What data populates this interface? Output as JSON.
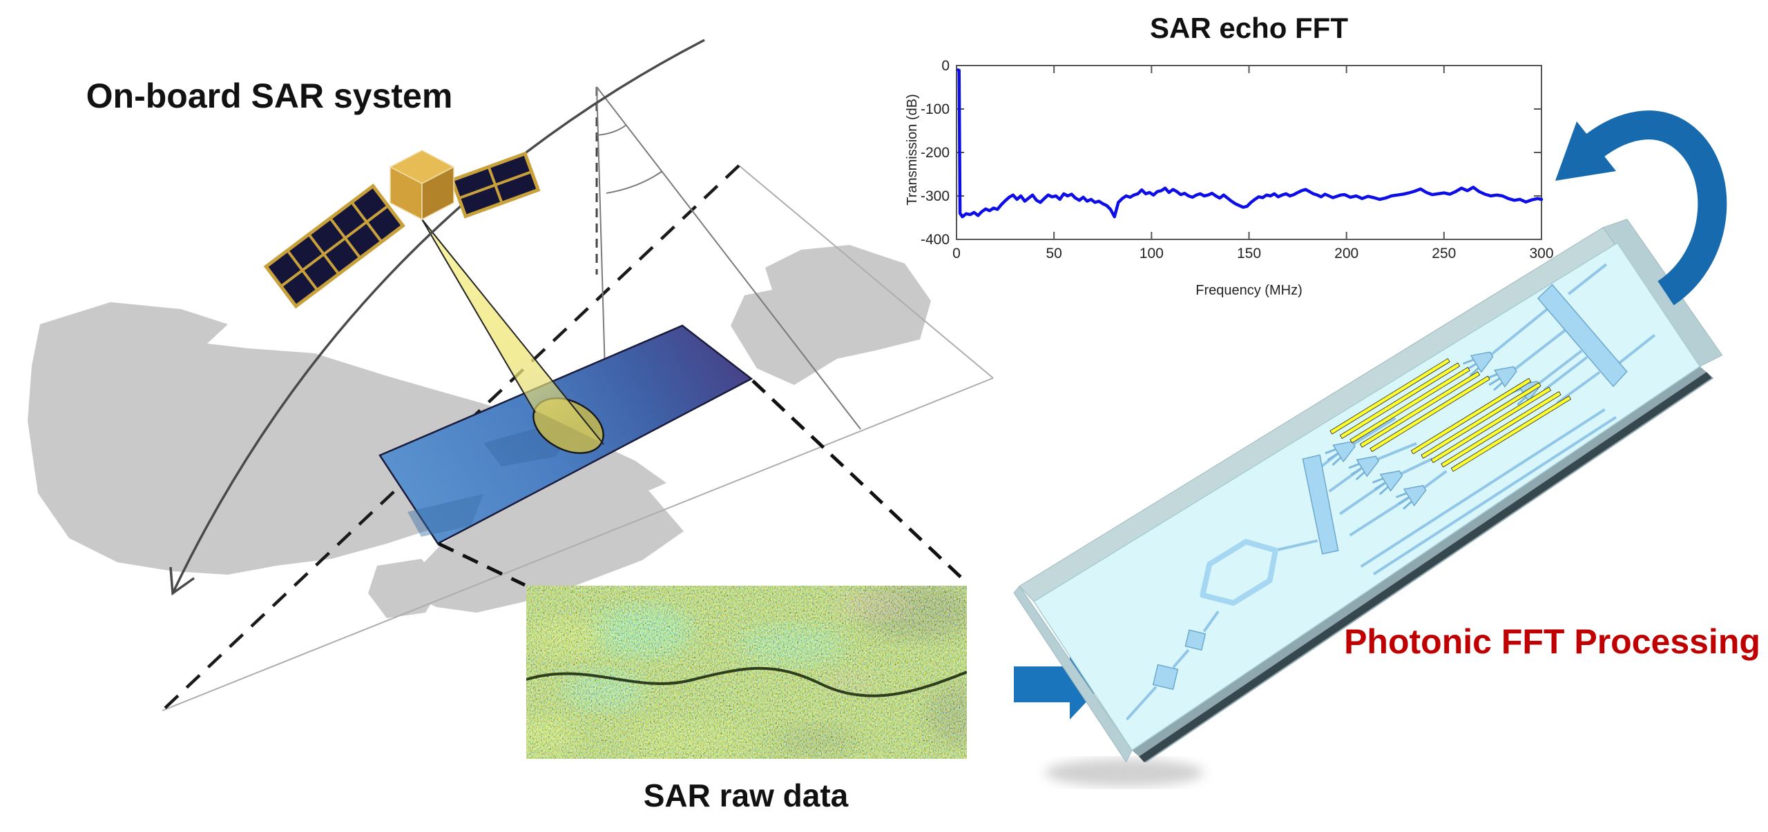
{
  "figure": {
    "labels": {
      "onboard_system": "On-board SAR system",
      "sar_raw_data": "SAR raw data",
      "photonic_fft": "Photonic FFT Processing"
    },
    "colors": {
      "accent_blue": "#1B75BC",
      "curved_arrow_blue": "#166AAD",
      "label_red": "#C00000",
      "chart_line": "#0D0DE8",
      "swath_light": "#5B93CF",
      "swath_dark": "#473F84",
      "chip_face": "#D9F7FB",
      "chip_band": "#C2D8DA",
      "grating_yellow": "#FFFF2E",
      "waveguide_blue": "#A5D6F2",
      "satellite_gold": "#D2A13B",
      "solar_panel_navy": "#15153A",
      "landmass_gray": "#C9C9C9",
      "beam_yellow": "#F5EF8E",
      "footprint_olive": "#B9B257"
    }
  },
  "chart_data": {
    "type": "line",
    "title": "SAR echo FFT",
    "xlabel": "Frequency (MHz)",
    "ylabel": "Transmission (dB)",
    "xlim": [
      0,
      300
    ],
    "ylim": [
      -400,
      0
    ],
    "xticks": [
      0,
      50,
      100,
      150,
      200,
      250,
      300
    ],
    "yticks": [
      0,
      -100,
      -200,
      -300,
      -400
    ],
    "grid": false,
    "legend": "none",
    "series": [
      {
        "name": "SAR echo FFT",
        "color": "#0D0DE8",
        "points": [
          [
            0.8,
            -10
          ],
          [
            1.3,
            -11
          ],
          [
            1.8,
            -340
          ],
          [
            3,
            -348
          ],
          [
            5,
            -341
          ],
          [
            7,
            -343
          ],
          [
            9,
            -338
          ],
          [
            11,
            -345
          ],
          [
            13,
            -336
          ],
          [
            15,
            -330
          ],
          [
            17,
            -334
          ],
          [
            19,
            -328
          ],
          [
            21,
            -331
          ],
          [
            23,
            -320
          ],
          [
            25,
            -311
          ],
          [
            27,
            -303
          ],
          [
            29,
            -298
          ],
          [
            31,
            -308
          ],
          [
            33,
            -300
          ],
          [
            35,
            -312
          ],
          [
            37,
            -305
          ],
          [
            39,
            -298
          ],
          [
            41,
            -310
          ],
          [
            43,
            -315
          ],
          [
            45,
            -306
          ],
          [
            47,
            -298
          ],
          [
            49,
            -302
          ],
          [
            51,
            -300
          ],
          [
            53,
            -308
          ],
          [
            55,
            -295
          ],
          [
            57,
            -300
          ],
          [
            59,
            -296
          ],
          [
            61,
            -305
          ],
          [
            63,
            -310
          ],
          [
            65,
            -303
          ],
          [
            67,
            -312
          ],
          [
            69,
            -308
          ],
          [
            71,
            -315
          ],
          [
            73,
            -312
          ],
          [
            75,
            -318
          ],
          [
            77,
            -322
          ],
          [
            79,
            -331
          ],
          [
            81,
            -348
          ],
          [
            83,
            -315
          ],
          [
            85,
            -306
          ],
          [
            87,
            -300
          ],
          [
            89,
            -303
          ],
          [
            91,
            -298
          ],
          [
            93,
            -295
          ],
          [
            95,
            -286
          ],
          [
            97,
            -295
          ],
          [
            99,
            -292
          ],
          [
            101,
            -298
          ],
          [
            103,
            -290
          ],
          [
            105,
            -288
          ],
          [
            107,
            -282
          ],
          [
            109,
            -292
          ],
          [
            111,
            -285
          ],
          [
            113,
            -290
          ],
          [
            115,
            -297
          ],
          [
            117,
            -294
          ],
          [
            119,
            -300
          ],
          [
            121,
            -303
          ],
          [
            123,
            -298
          ],
          [
            125,
            -295
          ],
          [
            127,
            -300
          ],
          [
            129,
            -298
          ],
          [
            131,
            -294
          ],
          [
            133,
            -300
          ],
          [
            135,
            -305
          ],
          [
            137,
            -298
          ],
          [
            139,
            -305
          ],
          [
            141,
            -312
          ],
          [
            143,
            -318
          ],
          [
            145,
            -322
          ],
          [
            147,
            -326
          ],
          [
            149,
            -324
          ],
          [
            151,
            -315
          ],
          [
            153,
            -308
          ],
          [
            155,
            -302
          ],
          [
            157,
            -304
          ],
          [
            159,
            -298
          ],
          [
            161,
            -300
          ],
          [
            163,
            -295
          ],
          [
            165,
            -302
          ],
          [
            167,
            -298
          ],
          [
            169,
            -295
          ],
          [
            171,
            -300
          ],
          [
            173,
            -297
          ],
          [
            175,
            -292
          ],
          [
            177,
            -288
          ],
          [
            179,
            -285
          ],
          [
            181,
            -290
          ],
          [
            183,
            -295
          ],
          [
            185,
            -298
          ],
          [
            187,
            -302
          ],
          [
            189,
            -296
          ],
          [
            191,
            -300
          ],
          [
            193,
            -304
          ],
          [
            195,
            -301
          ],
          [
            197,
            -298
          ],
          [
            199,
            -297
          ],
          [
            202,
            -303
          ],
          [
            205,
            -300
          ],
          [
            208,
            -306
          ],
          [
            211,
            -301
          ],
          [
            214,
            -304
          ],
          [
            217,
            -308
          ],
          [
            220,
            -305
          ],
          [
            223,
            -300
          ],
          [
            226,
            -298
          ],
          [
            229,
            -296
          ],
          [
            232,
            -293
          ],
          [
            235,
            -289
          ],
          [
            238,
            -284
          ],
          [
            241,
            -292
          ],
          [
            244,
            -297
          ],
          [
            247,
            -295
          ],
          [
            250,
            -293
          ],
          [
            253,
            -296
          ],
          [
            256,
            -290
          ],
          [
            259,
            -282
          ],
          [
            262,
            -288
          ],
          [
            265,
            -280
          ],
          [
            268,
            -290
          ],
          [
            271,
            -296
          ],
          [
            274,
            -300
          ],
          [
            277,
            -298
          ],
          [
            280,
            -300
          ],
          [
            283,
            -306
          ],
          [
            286,
            -310
          ],
          [
            289,
            -308
          ],
          [
            292,
            -314
          ],
          [
            295,
            -309
          ],
          [
            298,
            -306
          ],
          [
            300,
            -308
          ]
        ]
      }
    ]
  }
}
